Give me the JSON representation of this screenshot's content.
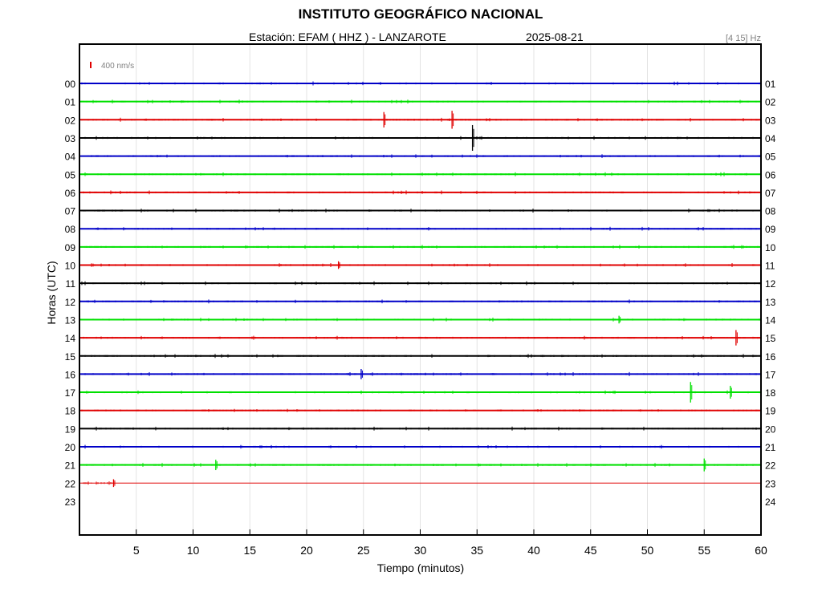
{
  "header": {
    "title": "INSTITUTO GEOGRÁFICO NACIONAL",
    "station": "Estación:  EFAM ( HHZ ) - LANZAROTE",
    "date": "2025-08-21",
    "filter": "[4 15] Hz"
  },
  "scale": {
    "label": "400 nm/s",
    "color": "#e00000"
  },
  "chart_data": {
    "type": "line",
    "xlabel": "Tiempo (minutos)",
    "ylabel": "Horas (UTC)",
    "xlim": [
      0,
      60
    ],
    "xticks": [
      5,
      10,
      15,
      20,
      25,
      30,
      35,
      40,
      45,
      50,
      55,
      60
    ],
    "grid": true,
    "left_hour_labels": [
      "00",
      "01",
      "02",
      "03",
      "04",
      "05",
      "06",
      "07",
      "08",
      "09",
      "10",
      "11",
      "12",
      "13",
      "14",
      "15",
      "16",
      "17",
      "18",
      "19",
      "20",
      "21",
      "22",
      "23"
    ],
    "right_hour_labels": [
      "01",
      "02",
      "03",
      "04",
      "05",
      "06",
      "07",
      "08",
      "09",
      "10",
      "11",
      "12",
      "13",
      "14",
      "15",
      "16",
      "17",
      "18",
      "19",
      "20",
      "21",
      "22",
      "23",
      "24"
    ],
    "colors": [
      "#0000c8",
      "#00e000",
      "#e00000",
      "#000000"
    ],
    "rows_with_data": 23,
    "last_row_data_end_min": 3,
    "events": [
      {
        "row": 2,
        "minute": 26.8,
        "amplitude": 0.6
      },
      {
        "row": 2,
        "minute": 32.8,
        "amplitude": 0.7
      },
      {
        "row": 3,
        "minute": 34.6,
        "amplitude": 1.0
      },
      {
        "row": 10,
        "minute": 22.8,
        "amplitude": 0.3
      },
      {
        "row": 13,
        "minute": 47.5,
        "amplitude": 0.3
      },
      {
        "row": 14,
        "minute": 57.8,
        "amplitude": 0.6
      },
      {
        "row": 16,
        "minute": 24.8,
        "amplitude": 0.4
      },
      {
        "row": 17,
        "minute": 53.8,
        "amplitude": 0.8
      },
      {
        "row": 17,
        "minute": 57.3,
        "amplitude": 0.5
      },
      {
        "row": 21,
        "minute": 12.0,
        "amplitude": 0.4
      },
      {
        "row": 21,
        "minute": 55.0,
        "amplitude": 0.5
      },
      {
        "row": 22,
        "minute": 3.0,
        "amplitude": 0.3
      }
    ]
  }
}
